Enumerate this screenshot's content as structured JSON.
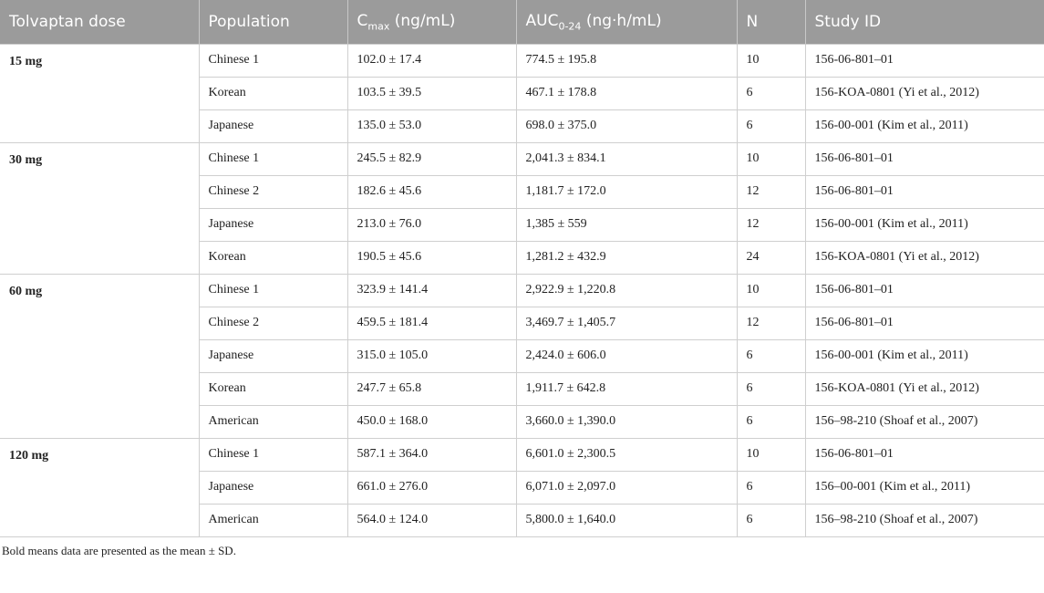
{
  "headers": {
    "dose": "Tolvaptan dose",
    "population": "Population",
    "cmax_main": "C",
    "cmax_sub": "max",
    "cmax_unit": " (ng/mL)",
    "auc_main": "AUC",
    "auc_sub": "0-24",
    "auc_unit": " (ng·h/mL)",
    "n": "N",
    "study": "Study ID"
  },
  "groups": [
    {
      "dose": "15 mg",
      "rows": [
        [
          "Chinese 1",
          "102.0 ± 17.4",
          "774.5 ± 195.8",
          "10",
          "156-06-801–01"
        ],
        [
          "Korean",
          "103.5 ± 39.5",
          "467.1 ± 178.8",
          "6",
          "156-KOA-0801 (Yi et al., 2012)"
        ],
        [
          "Japanese",
          "135.0 ± 53.0",
          "698.0 ± 375.0",
          "6",
          "156-00-001 (Kim et al., 2011)"
        ]
      ]
    },
    {
      "dose": "30 mg",
      "rows": [
        [
          "Chinese 1",
          "245.5 ± 82.9",
          "2,041.3 ± 834.1",
          "10",
          "156-06-801–01"
        ],
        [
          "Chinese 2",
          "182.6 ± 45.6",
          "1,181.7 ± 172.0",
          "12",
          "156-06-801–01"
        ],
        [
          "Japanese",
          "213.0 ± 76.0",
          "1,385 ± 559",
          "12",
          "156-00-001 (Kim et al., 2011)"
        ],
        [
          "Korean",
          "190.5 ± 45.6",
          "1,281.2 ± 432.9",
          "24",
          "156-KOA-0801 (Yi et al., 2012)"
        ]
      ]
    },
    {
      "dose": "60 mg",
      "rows": [
        [
          "Chinese 1",
          "323.9 ± 141.4",
          "2,922.9 ± 1,220.8",
          "10",
          "156-06-801–01"
        ],
        [
          "Chinese 2",
          "459.5 ± 181.4",
          "3,469.7 ± 1,405.7",
          "12",
          "156-06-801–01"
        ],
        [
          "Japanese",
          "315.0 ± 105.0",
          "2,424.0 ± 606.0",
          "6",
          "156-00-001 (Kim et al., 2011)"
        ],
        [
          "Korean",
          "247.7 ± 65.8",
          "1,911.7 ± 642.8",
          "6",
          "156-KOA-0801 (Yi et al., 2012)"
        ],
        [
          "American",
          "450.0 ± 168.0",
          "3,660.0 ± 1,390.0",
          "6",
          "156–98-210 (Shoaf et al., 2007)"
        ]
      ]
    },
    {
      "dose": "120 mg",
      "rows": [
        [
          "Chinese 1",
          "587.1 ± 364.0",
          "6,601.0 ± 2,300.5",
          "10",
          "156-06-801–01"
        ],
        [
          "Japanese",
          "661.0 ± 276.0",
          "6,071.0 ± 2,097.0",
          "6",
          "156–00-001 (Kim et al., 2011)"
        ],
        [
          "American",
          "564.0 ± 124.0",
          "5,800.0 ± 1,640.0",
          "6",
          "156–98-210 (Shoaf et al., 2007)"
        ]
      ]
    }
  ],
  "footnote": "Bold means data are presented as the mean ± SD."
}
